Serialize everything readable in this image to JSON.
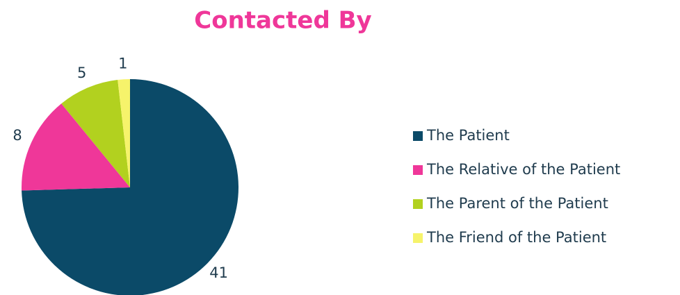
{
  "chart_data": {
    "type": "pie",
    "title": "Contacted By",
    "categories": [
      "The Patient",
      "The Relative of the Patient",
      "The Parent of the Patient",
      "The Friend of the Patient"
    ],
    "values": [
      41,
      8,
      5,
      1
    ],
    "colors": [
      "#0b4a68",
      "#ef3799",
      "#b2d11f",
      "#f6f36b"
    ],
    "legend": "right"
  }
}
